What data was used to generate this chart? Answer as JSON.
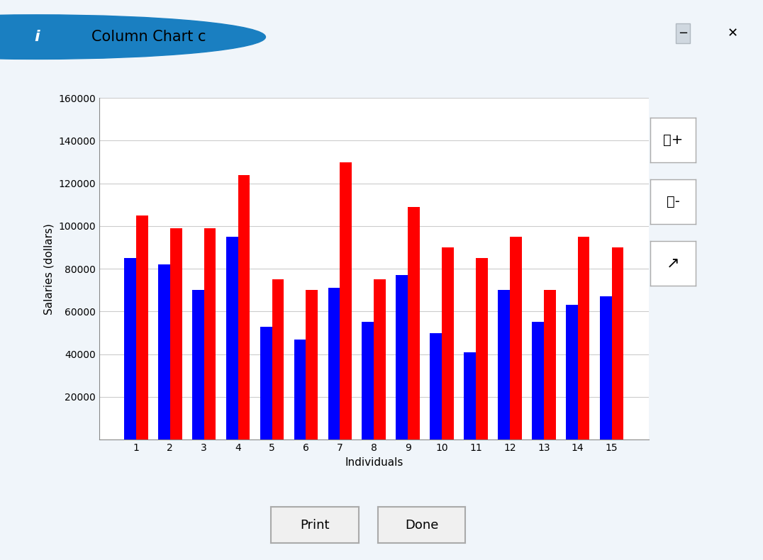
{
  "title": "Column Chart c",
  "xlabel": "Individuals",
  "ylabel": "Salaries (dollars)",
  "categories": [
    1,
    2,
    3,
    4,
    5,
    6,
    7,
    8,
    9,
    10,
    11,
    12,
    13,
    14,
    15
  ],
  "blue_values": [
    85000,
    82000,
    70000,
    95000,
    53000,
    47000,
    71000,
    55000,
    77000,
    50000,
    41000,
    70000,
    55000,
    63000,
    67000
  ],
  "red_values": [
    105000,
    99000,
    99000,
    124000,
    75000,
    70000,
    130000,
    75000,
    109000,
    90000,
    85000,
    95000,
    70000,
    95000,
    90000
  ],
  "blue_color": "#0000FF",
  "red_color": "#FF0000",
  "ylim": [
    0,
    160000
  ],
  "yticks": [
    20000,
    40000,
    60000,
    80000,
    100000,
    120000,
    140000,
    160000
  ],
  "bar_width": 0.35,
  "dialog_bg": "#f0f5fa",
  "titlebar_bg": "#dce8f5",
  "panel_bg": "#f5f5f5",
  "plot_bg": "#ffffff",
  "grid_color": "#cccccc",
  "border_color": "#b0b8c0",
  "title_fontsize": 15,
  "axis_label_fontsize": 11,
  "tick_fontsize": 10
}
